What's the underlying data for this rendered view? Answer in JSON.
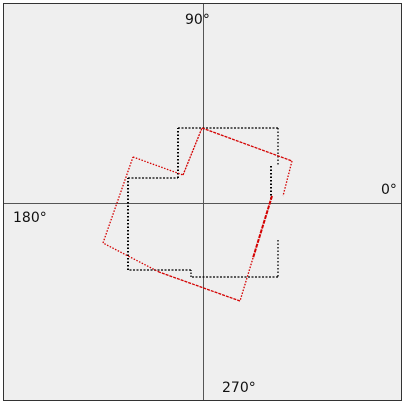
{
  "axis_labels": {
    "deg_0": "0°",
    "deg_90": "90°",
    "deg_180": "180°",
    "deg_270": "270°"
  },
  "colors": {
    "background": "#efefef",
    "frame": "#333333",
    "axes": "#555555",
    "black_outline": "#000000",
    "red_outline": "#d40000"
  }
}
